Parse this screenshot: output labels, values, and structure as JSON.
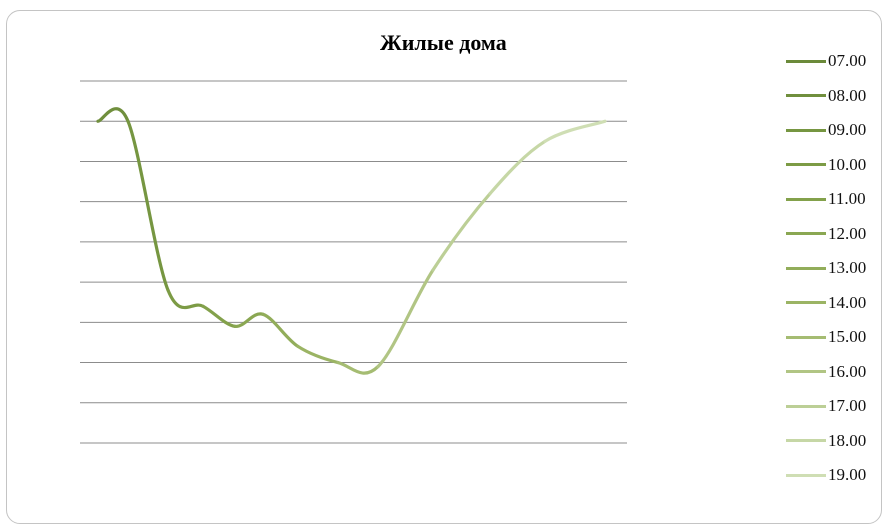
{
  "chart_data": {
    "type": "line",
    "title": "Жилые дома",
    "xlabel": "",
    "ylabel": "",
    "categories": [
      "07.00",
      "08.00",
      "09.00",
      "10.00",
      "11.00",
      "12.00",
      "13.00",
      "14.00",
      "15.00",
      "16.00",
      "17.00",
      "18.00",
      "19.00"
    ],
    "values": [
      8.0,
      8.0,
      3.8,
      3.4,
      2.9,
      3.2,
      2.4,
      2.0,
      1.9,
      4.3,
      6.2,
      7.5,
      8.0
    ],
    "ylim": [
      0,
      9
    ],
    "grid": true,
    "legend_position": "right",
    "series": [
      {
        "name": "07.00",
        "color": "#6b8a3a"
      },
      {
        "name": "08.00",
        "color": "#708f3d"
      },
      {
        "name": "09.00",
        "color": "#769641"
      },
      {
        "name": "10.00",
        "color": "#7c9b45"
      },
      {
        "name": "11.00",
        "color": "#83a14b"
      },
      {
        "name": "12.00",
        "color": "#8aa752"
      },
      {
        "name": "13.00",
        "color": "#92ad5a"
      },
      {
        "name": "14.00",
        "color": "#9bb464"
      },
      {
        "name": "15.00",
        "color": "#a5bc72"
      },
      {
        "name": "16.00",
        "color": "#b1c584"
      },
      {
        "name": "17.00",
        "color": "#bccf96"
      },
      {
        "name": "18.00",
        "color": "#c6d7a6"
      },
      {
        "name": "19.00",
        "color": "#cfdeb4"
      }
    ]
  }
}
